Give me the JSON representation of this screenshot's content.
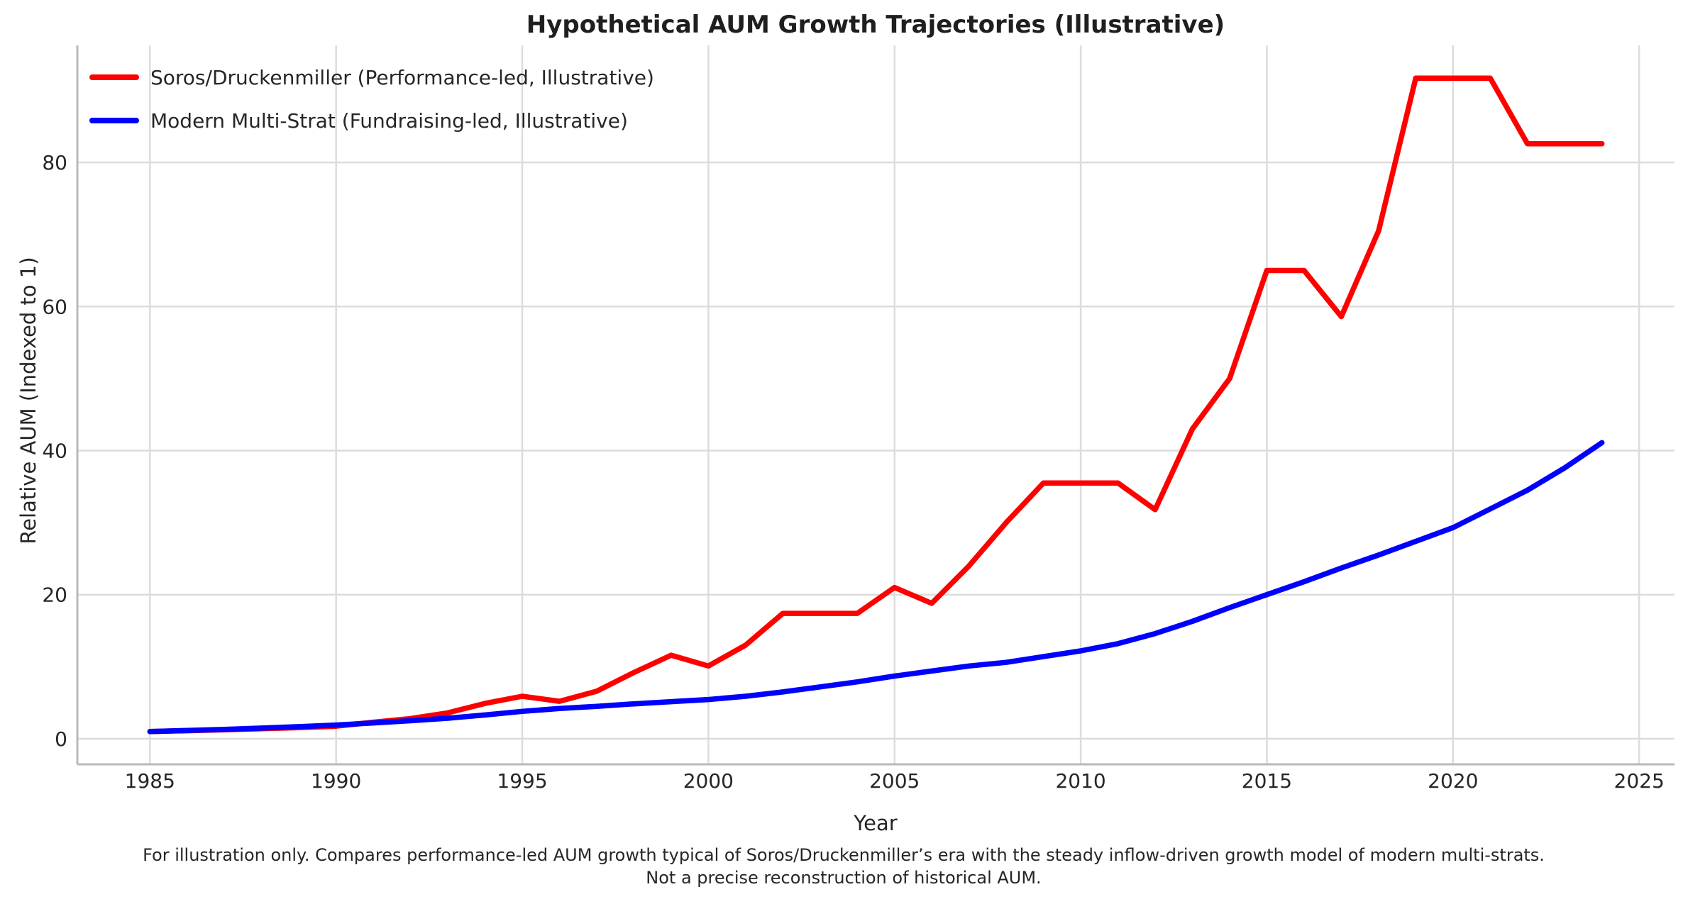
{
  "figure": {
    "footnote_line1": "For illustration only. Compares performance-led AUM growth typical of Soros/Druckenmiller’s era with the steady inflow-driven growth model of modern multi-strats.",
    "footnote_line2": "Not a precise reconstruction of historical AUM."
  },
  "chart_data": {
    "type": "line",
    "title": "Hypothetical AUM Growth Trajectories (Illustrative)",
    "xlabel": "Year",
    "ylabel": "Relative AUM (Indexed to 1)",
    "xlim": [
      1983.05,
      2025.95
    ],
    "ylim": [
      -3.55,
      96.25
    ],
    "xticks": [
      1985,
      1990,
      1995,
      2000,
      2005,
      2010,
      2015,
      2020,
      2025
    ],
    "yticks": [
      0,
      20,
      40,
      60,
      80
    ],
    "grid": true,
    "legend_position": "upper-left",
    "x": [
      1985,
      1986,
      1987,
      1988,
      1989,
      1990,
      1991,
      1992,
      1993,
      1994,
      1995,
      1996,
      1997,
      1998,
      1999,
      2000,
      2001,
      2002,
      2003,
      2004,
      2005,
      2006,
      2007,
      2008,
      2009,
      2010,
      2011,
      2012,
      2013,
      2014,
      2015,
      2016,
      2017,
      2018,
      2019,
      2020,
      2021,
      2022,
      2023,
      2024
    ],
    "series": [
      {
        "name": "Soros/Druckenmiller (Performance-led, Illustrative)",
        "color": "#ff0000",
        "values": [
          1.0,
          1.12,
          1.25,
          1.4,
          1.55,
          1.75,
          2.3,
          2.8,
          3.6,
          4.9,
          5.9,
          5.2,
          6.6,
          9.2,
          11.6,
          10.1,
          13.0,
          17.4,
          17.4,
          17.4,
          21.0,
          18.8,
          24.0,
          30.0,
          35.5,
          35.5,
          35.5,
          31.8,
          43.0,
          50.0,
          65.0,
          65.0,
          58.6,
          70.5,
          91.7,
          91.7,
          91.7,
          82.6,
          82.6,
          82.6
        ]
      },
      {
        "name": "Modern Multi-Strat (Fundraising-led, Illustrative)",
        "color": "#0000ff",
        "values": [
          1.0,
          1.15,
          1.3,
          1.48,
          1.68,
          1.9,
          2.2,
          2.5,
          2.85,
          3.3,
          3.8,
          4.2,
          4.5,
          4.85,
          5.15,
          5.45,
          5.9,
          6.5,
          7.2,
          7.9,
          8.7,
          9.4,
          10.1,
          10.6,
          11.4,
          12.2,
          13.2,
          14.6,
          16.3,
          18.2,
          20.0,
          21.8,
          23.7,
          25.5,
          27.4,
          29.3,
          31.9,
          34.5,
          37.6,
          41.1
        ]
      }
    ]
  },
  "colors": {
    "grid": "#dcdcdc",
    "spine": "#b9b9b9",
    "text": "#262626",
    "background": "#ffffff"
  }
}
